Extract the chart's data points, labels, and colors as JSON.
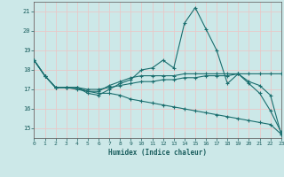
{
  "xlabel": "Humidex (Indice chaleur)",
  "background_color": "#cce8e8",
  "grid_color": "#e8c8c8",
  "line_color": "#1a6e6e",
  "x_values": [
    0,
    1,
    2,
    3,
    4,
    5,
    6,
    7,
    8,
    9,
    10,
    11,
    12,
    13,
    14,
    15,
    16,
    17,
    18,
    19,
    20,
    21,
    22,
    23
  ],
  "series": [
    [
      18.5,
      17.7,
      17.1,
      17.1,
      17.1,
      16.8,
      16.7,
      17.0,
      17.3,
      17.5,
      18.0,
      18.1,
      18.5,
      18.1,
      20.4,
      21.2,
      20.1,
      19.0,
      17.3,
      17.8,
      17.3,
      16.8,
      15.9,
      14.8
    ],
    [
      18.5,
      17.7,
      17.1,
      17.1,
      17.1,
      16.9,
      16.9,
      17.2,
      17.4,
      17.6,
      17.7,
      17.7,
      17.7,
      17.7,
      17.8,
      17.8,
      17.8,
      17.8,
      17.8,
      17.8,
      17.8,
      17.8,
      17.8,
      17.8
    ],
    [
      18.5,
      17.7,
      17.1,
      17.1,
      17.1,
      17.0,
      17.0,
      17.1,
      17.2,
      17.3,
      17.4,
      17.4,
      17.5,
      17.5,
      17.6,
      17.6,
      17.7,
      17.7,
      17.7,
      17.8,
      17.4,
      17.2,
      16.7,
      14.7
    ],
    [
      18.5,
      17.7,
      17.1,
      17.1,
      17.0,
      16.9,
      16.8,
      16.8,
      16.7,
      16.5,
      16.4,
      16.3,
      16.2,
      16.1,
      16.0,
      15.9,
      15.8,
      15.7,
      15.6,
      15.5,
      15.4,
      15.3,
      15.2,
      14.7
    ]
  ],
  "xlim": [
    0,
    23
  ],
  "ylim": [
    14.5,
    21.5
  ],
  "yticks": [
    15,
    16,
    17,
    18,
    19,
    20,
    21
  ],
  "xticks": [
    0,
    1,
    2,
    3,
    4,
    5,
    6,
    7,
    8,
    9,
    10,
    11,
    12,
    13,
    14,
    15,
    16,
    17,
    18,
    19,
    20,
    21,
    22,
    23
  ]
}
